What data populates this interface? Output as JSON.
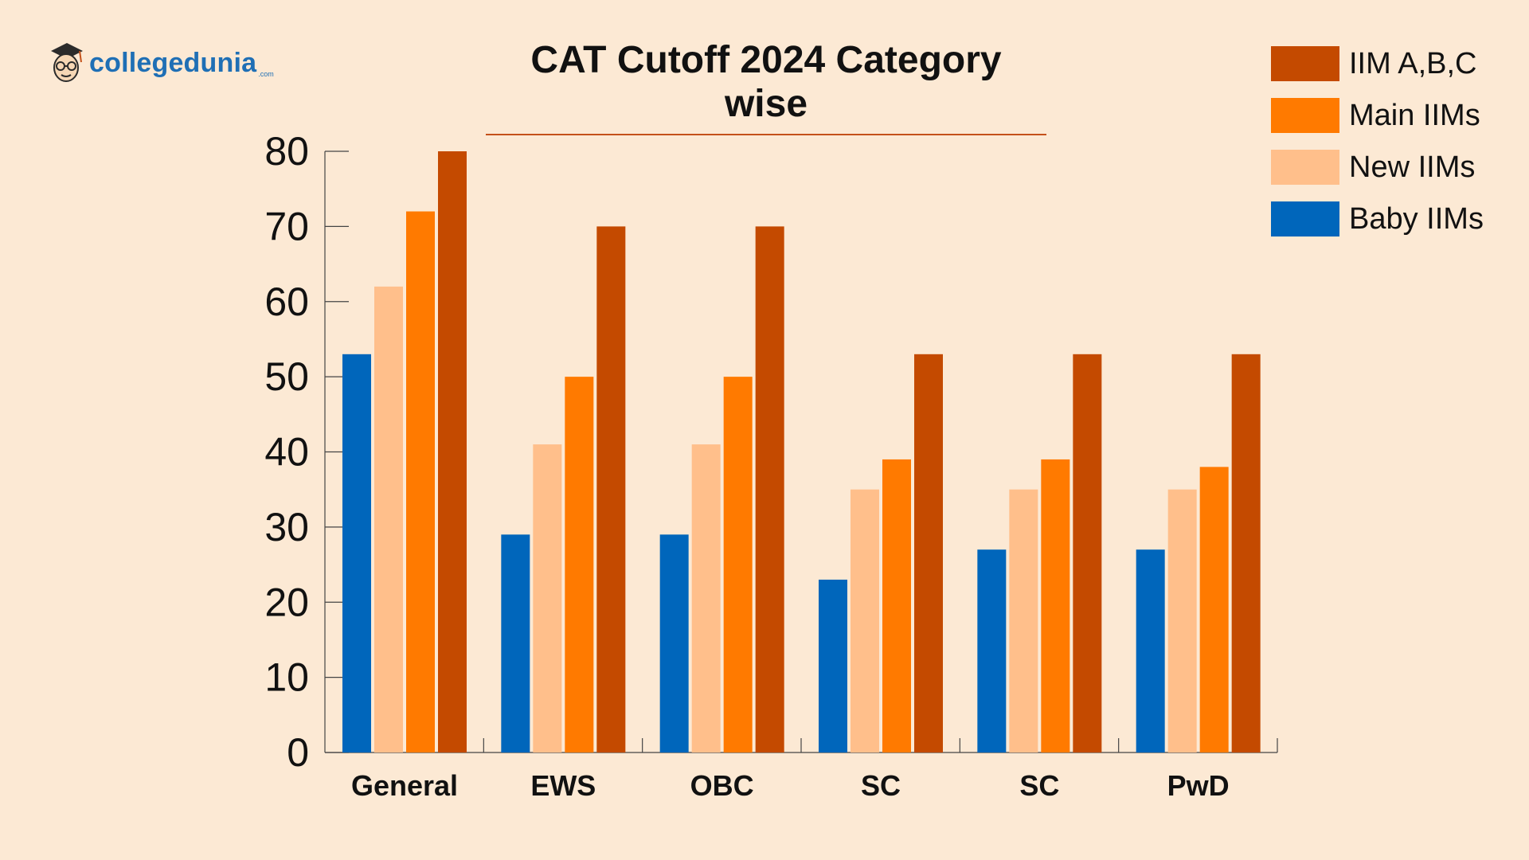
{
  "brand": {
    "name": "collegedunia",
    "suffix": ".com"
  },
  "chart_data": {
    "type": "bar",
    "title": "CAT Cutoff 2024 Category wise",
    "xlabel": "",
    "ylabel": "",
    "categories": [
      "General",
      "EWS",
      "OBC",
      "SC",
      "SC",
      "PwD"
    ],
    "series": [
      {
        "name": "Baby IIMs",
        "color": "#0066bb",
        "values": [
          53,
          29,
          29,
          23,
          27,
          27
        ]
      },
      {
        "name": "New IIMs",
        "color": "#ffbf8b",
        "values": [
          62,
          41,
          41,
          35,
          35,
          35
        ]
      },
      {
        "name": "Main IIMs",
        "color": "#ff7a00",
        "values": [
          72,
          50,
          50,
          39,
          39,
          38
        ]
      },
      {
        "name": "IIM A,B,C",
        "color": "#c44a00",
        "values": [
          80,
          70,
          70,
          53,
          53,
          53
        ]
      }
    ],
    "legend_order": [
      "IIM A,B,C",
      "Main IIMs",
      "New IIMs",
      "Baby IIMs"
    ],
    "ylim": [
      0,
      80
    ],
    "yticks": [
      0,
      10,
      20,
      30,
      40,
      50,
      60,
      70,
      80
    ],
    "grid": false,
    "legend_position": "top-right"
  }
}
